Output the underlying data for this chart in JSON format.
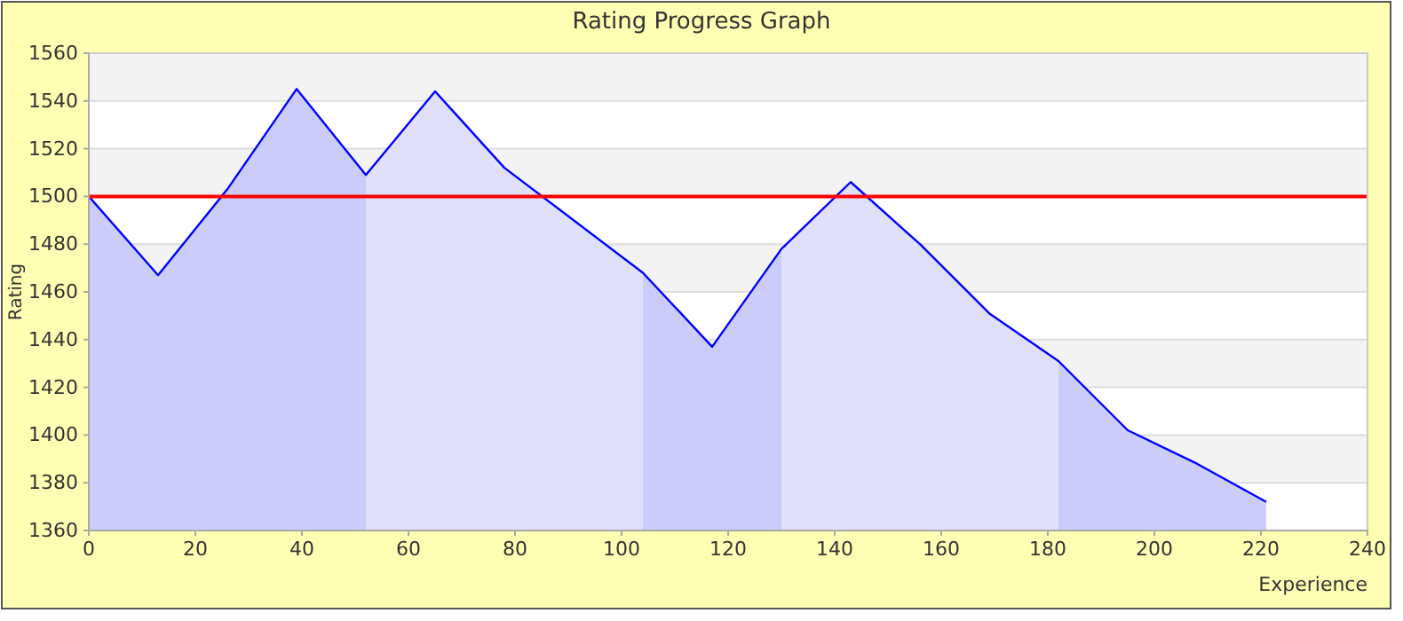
{
  "chart_data": {
    "type": "area",
    "title": "Rating Progress Graph",
    "xlabel": "Experience",
    "ylabel": "Rating",
    "xlim": [
      0,
      240
    ],
    "xticks": [
      0,
      20,
      40,
      60,
      80,
      100,
      120,
      140,
      160,
      180,
      200,
      220,
      240
    ],
    "ylim": [
      1360,
      1560
    ],
    "yticks": [
      1360,
      1380,
      1400,
      1420,
      1440,
      1460,
      1480,
      1500,
      1520,
      1540,
      1560
    ],
    "grid": "y",
    "marker": "none",
    "series": [
      {
        "color": "#ccccfa",
        "x": [
          0,
          13,
          26,
          39,
          52
        ],
        "values": [
          1500,
          1467,
          1503,
          1545,
          1509
        ]
      },
      {
        "color": "#e0e0fa",
        "x": [
          52,
          65,
          78,
          91,
          104
        ],
        "values": [
          1509,
          1544,
          1512,
          1490,
          1468
        ]
      },
      {
        "color": "#ccccfa",
        "x": [
          104,
          117,
          130
        ],
        "values": [
          1468,
          1437,
          1478
        ]
      },
      {
        "color": "#e0e0fa",
        "x": [
          130,
          143,
          156,
          169,
          182
        ],
        "values": [
          1478,
          1506,
          1480,
          1451,
          1431
        ]
      },
      {
        "color": "#ccccfa",
        "x": [
          182,
          195,
          208,
          221
        ],
        "values": [
          1431,
          1402,
          1388,
          1372
        ]
      },
      {
        "type": "line",
        "color": "#0000ff",
        "x": [
          0,
          13,
          26,
          39,
          52,
          65,
          78,
          91,
          104,
          117,
          130,
          143,
          156,
          169,
          182,
          195,
          208,
          221
        ],
        "values": [
          1500,
          1467,
          1503,
          1545,
          1509,
          1544,
          1512,
          1490,
          1468,
          1437,
          1478,
          1506,
          1480,
          1451,
          1431,
          1402,
          1388,
          1372
        ]
      }
    ],
    "ref_lines": [
      {
        "axis": "y",
        "value": 1500,
        "color": "#ff0000"
      }
    ]
  }
}
